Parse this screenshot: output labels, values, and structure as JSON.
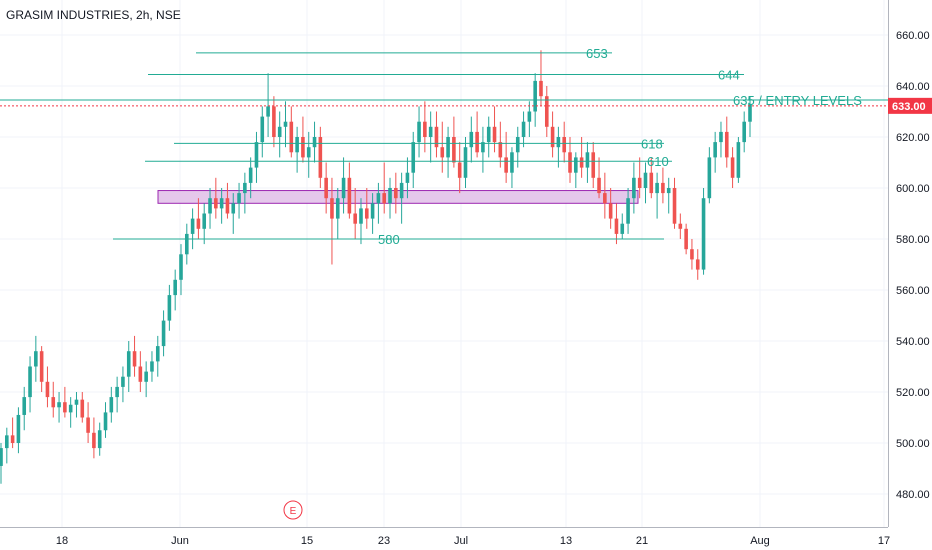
{
  "header": {
    "symbol_title": "GRASIM INDUSTRIES, 2h, NSE"
  },
  "current_price": {
    "label": "633.00",
    "value": 633,
    "color": "#f23645"
  },
  "event_marker": {
    "label": "E",
    "color": "#f23645"
  },
  "colors": {
    "up": "#26a69a",
    "down": "#ef5350",
    "level": "#22ab94",
    "zone_fill": "#e1bee7",
    "zone_border": "#9c27b0",
    "grid": "#f0f3fa",
    "axis_border": "#b2b5be"
  },
  "chart_data": {
    "type": "candlestick",
    "title": "GRASIM INDUSTRIES, 2h, NSE",
    "ylim": [
      470,
      665
    ],
    "y_ticks": [
      480,
      500,
      520,
      540,
      560,
      580,
      600,
      620,
      640,
      660
    ],
    "y_tick_labels": [
      "480.00",
      "500.00",
      "520.00",
      "540.00",
      "560.00",
      "580.00",
      "600.00",
      "620.00",
      "640.00",
      "660.00"
    ],
    "x_tick_labels": [
      "18",
      "Jun",
      "15",
      "23",
      "Jul",
      "13",
      "21",
      "Aug",
      "17"
    ],
    "grid": true,
    "levels": [
      {
        "label": "653",
        "value": 653
      },
      {
        "label": "644",
        "value": 644.5
      },
      {
        "label": "635 / ENTRY LEVELS",
        "value": 634.5
      },
      {
        "label": "618",
        "value": 617.5
      },
      {
        "label": "610",
        "value": 610.5
      },
      {
        "label": "580",
        "value": 580
      }
    ],
    "zone": {
      "low": 594,
      "high": 599
    },
    "candles": [
      [
        491,
        500,
        484,
        498
      ],
      [
        498,
        506,
        492,
        503
      ],
      [
        503,
        510,
        498,
        500
      ],
      [
        500,
        514,
        496,
        511
      ],
      [
        511,
        522,
        505,
        518
      ],
      [
        518,
        534,
        512,
        530
      ],
      [
        530,
        542,
        524,
        536
      ],
      [
        536,
        538,
        520,
        524
      ],
      [
        524,
        530,
        514,
        518
      ],
      [
        518,
        524,
        510,
        514
      ],
      [
        514,
        520,
        508,
        516
      ],
      [
        516,
        522,
        510,
        512
      ],
      [
        512,
        518,
        506,
        515
      ],
      [
        515,
        520,
        510,
        517
      ],
      [
        517,
        520,
        508,
        510
      ],
      [
        510,
        516,
        500,
        504
      ],
      [
        504,
        510,
        494,
        498
      ],
      [
        498,
        508,
        495,
        505
      ],
      [
        505,
        516,
        502,
        512
      ],
      [
        512,
        522,
        508,
        518
      ],
      [
        518,
        526,
        512,
        522
      ],
      [
        522,
        530,
        516,
        526
      ],
      [
        526,
        540,
        520,
        536
      ],
      [
        536,
        542,
        526,
        530
      ],
      [
        530,
        536,
        520,
        524
      ],
      [
        524,
        532,
        518,
        528
      ],
      [
        528,
        536,
        524,
        532
      ],
      [
        532,
        542,
        526,
        538
      ],
      [
        538,
        552,
        534,
        548
      ],
      [
        548,
        562,
        544,
        558
      ],
      [
        558,
        568,
        552,
        564
      ],
      [
        564,
        578,
        558,
        574
      ],
      [
        574,
        586,
        570,
        582
      ],
      [
        582,
        592,
        576,
        588
      ],
      [
        588,
        596,
        580,
        584
      ],
      [
        584,
        594,
        578,
        590
      ],
      [
        590,
        600,
        584,
        596
      ],
      [
        596,
        604,
        588,
        592
      ],
      [
        592,
        600,
        586,
        596
      ],
      [
        596,
        602,
        588,
        590
      ],
      [
        590,
        598,
        582,
        594
      ],
      [
        594,
        602,
        588,
        598
      ],
      [
        598,
        606,
        590,
        602
      ],
      [
        602,
        612,
        596,
        608
      ],
      [
        608,
        622,
        602,
        618
      ],
      [
        618,
        632,
        612,
        628
      ],
      [
        628,
        645,
        620,
        632
      ],
      [
        632,
        636,
        616,
        620
      ],
      [
        620,
        630,
        612,
        624
      ],
      [
        624,
        634,
        616,
        626
      ],
      [
        626,
        632,
        612,
        614
      ],
      [
        614,
        624,
        606,
        620
      ],
      [
        620,
        628,
        610,
        612
      ],
      [
        612,
        622,
        604,
        616
      ],
      [
        616,
        626,
        610,
        620
      ],
      [
        620,
        624,
        600,
        604
      ],
      [
        604,
        610,
        590,
        596
      ],
      [
        596,
        604,
        570,
        588
      ],
      [
        588,
        600,
        580,
        596
      ],
      [
        596,
        612,
        590,
        604
      ],
      [
        604,
        610,
        588,
        590
      ],
      [
        590,
        600,
        580,
        586
      ],
      [
        586,
        596,
        578,
        592
      ],
      [
        592,
        600,
        584,
        588
      ],
      [
        588,
        598,
        582,
        594
      ],
      [
        594,
        602,
        586,
        598
      ],
      [
        598,
        610,
        590,
        594
      ],
      [
        594,
        604,
        588,
        600
      ],
      [
        600,
        606,
        590,
        596
      ],
      [
        596,
        606,
        586,
        602
      ],
      [
        602,
        612,
        596,
        606
      ],
      [
        606,
        622,
        600,
        618
      ],
      [
        618,
        632,
        612,
        626
      ],
      [
        626,
        634,
        614,
        620
      ],
      [
        620,
        630,
        610,
        624
      ],
      [
        624,
        630,
        612,
        616
      ],
      [
        616,
        626,
        606,
        612
      ],
      [
        612,
        624,
        604,
        620
      ],
      [
        620,
        628,
        608,
        610
      ],
      [
        610,
        618,
        598,
        604
      ],
      [
        604,
        620,
        600,
        616
      ],
      [
        616,
        628,
        610,
        622
      ],
      [
        622,
        630,
        612,
        614
      ],
      [
        614,
        624,
        606,
        618
      ],
      [
        618,
        628,
        612,
        624
      ],
      [
        624,
        632,
        614,
        618
      ],
      [
        618,
        626,
        608,
        612
      ],
      [
        612,
        622,
        602,
        606
      ],
      [
        606,
        616,
        600,
        614
      ],
      [
        614,
        624,
        608,
        620
      ],
      [
        620,
        630,
        616,
        626
      ],
      [
        626,
        634,
        620,
        630
      ],
      [
        630,
        645,
        624,
        642
      ],
      [
        642,
        654,
        632,
        636
      ],
      [
        636,
        640,
        620,
        624
      ],
      [
        624,
        630,
        612,
        616
      ],
      [
        616,
        624,
        608,
        620
      ],
      [
        620,
        626,
        610,
        614
      ],
      [
        614,
        620,
        602,
        606
      ],
      [
        606,
        614,
        600,
        612
      ],
      [
        612,
        620,
        604,
        608
      ],
      [
        608,
        618,
        602,
        614
      ],
      [
        614,
        618,
        600,
        604
      ],
      [
        604,
        612,
        596,
        598
      ],
      [
        598,
        606,
        588,
        594
      ],
      [
        594,
        600,
        584,
        588
      ],
      [
        588,
        594,
        578,
        582
      ],
      [
        582,
        590,
        580,
        586
      ],
      [
        586,
        600,
        582,
        596
      ],
      [
        596,
        610,
        590,
        604
      ],
      [
        604,
        612,
        596,
        600
      ],
      [
        600,
        610,
        594,
        606
      ],
      [
        606,
        612,
        596,
        598
      ],
      [
        598,
        606,
        588,
        602
      ],
      [
        602,
        608,
        594,
        598
      ],
      [
        598,
        604,
        590,
        600
      ],
      [
        600,
        604,
        584,
        586
      ],
      [
        586,
        590,
        580,
        584
      ],
      [
        584,
        586,
        574,
        576
      ],
      [
        576,
        580,
        568,
        572
      ],
      [
        572,
        576,
        564,
        568
      ],
      [
        568,
        600,
        566,
        596
      ],
      [
        596,
        616,
        594,
        612
      ],
      [
        612,
        622,
        606,
        618
      ],
      [
        618,
        626,
        612,
        622
      ],
      [
        622,
        628,
        608,
        612
      ],
      [
        612,
        616,
        600,
        604
      ],
      [
        604,
        620,
        602,
        618
      ],
      [
        618,
        630,
        614,
        626
      ],
      [
        626,
        636,
        620,
        633
      ]
    ]
  }
}
